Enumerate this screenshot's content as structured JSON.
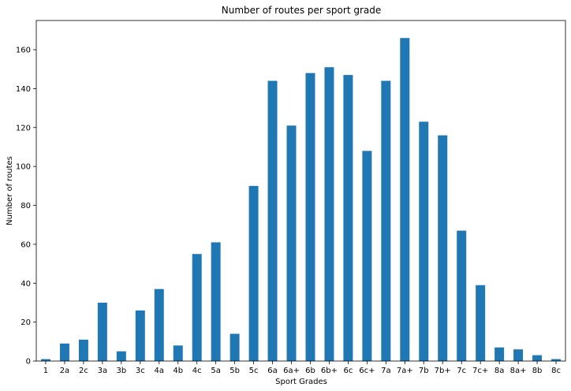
{
  "chart_data": {
    "type": "bar",
    "title": "Number of routes per sport grade",
    "xlabel": "Sport Grades",
    "ylabel": "Number of routes",
    "categories": [
      "1",
      "2a",
      "2c",
      "3a",
      "3b",
      "3c",
      "4a",
      "4b",
      "4c",
      "5a",
      "5b",
      "5c",
      "6a",
      "6a+",
      "6b",
      "6b+",
      "6c",
      "6c+",
      "7a",
      "7a+",
      "7b",
      "7b+",
      "7c",
      "7c+",
      "8a",
      "8a+",
      "8b",
      "8c"
    ],
    "values": [
      1,
      9,
      11,
      30,
      5,
      26,
      37,
      8,
      55,
      61,
      14,
      90,
      144,
      121,
      148,
      151,
      147,
      108,
      144,
      166,
      123,
      116,
      67,
      39,
      7,
      6,
      3,
      1
    ],
    "ylim": [
      0,
      175
    ],
    "yticks": [
      0,
      20,
      40,
      60,
      80,
      100,
      120,
      140,
      160
    ],
    "grid": false,
    "legend": "none",
    "bar_color": "#1f77b4"
  }
}
